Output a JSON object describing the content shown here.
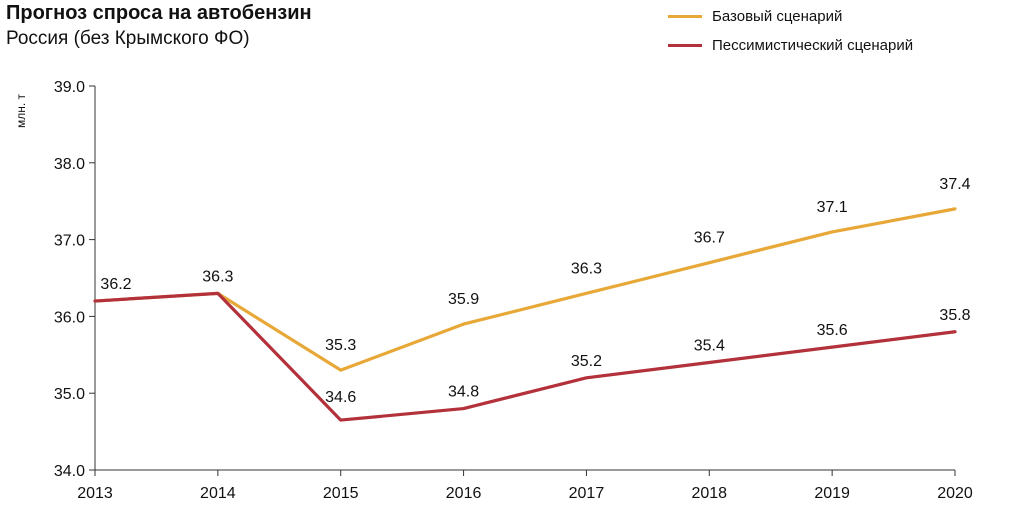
{
  "chart_data": {
    "type": "line",
    "title": "Прогноз спроса на автобензин",
    "subtitle": "Россия (без Крымского ФО)",
    "ylabel": "млн. т",
    "xlabel": "",
    "categories": [
      "2013",
      "2014",
      "2015",
      "2016",
      "2017",
      "2018",
      "2019",
      "2020"
    ],
    "ylim": [
      34.0,
      39.0
    ],
    "yticks": [
      "34.0",
      "35.0",
      "36.0",
      "37.0",
      "38.0",
      "39.0"
    ],
    "grid": false,
    "legend_position": "top-right",
    "series": [
      {
        "name": "Базовый сценарий",
        "color": "#E8A838",
        "values": [
          36.2,
          36.3,
          35.3,
          35.9,
          36.3,
          36.7,
          37.1,
          37.4
        ],
        "labels": [
          "",
          "",
          "35.3",
          "35.9",
          "36.3",
          "36.7",
          "37.1",
          "37.4"
        ]
      },
      {
        "name": "Пессимистический сценарий",
        "color": "#B3313A",
        "values": [
          36.2,
          36.3,
          34.65,
          34.8,
          35.2,
          35.4,
          35.6,
          35.8
        ],
        "labels": [
          "36.2",
          "36.3",
          "34.6",
          "34.8",
          "35.2",
          "35.4",
          "35.6",
          "35.8"
        ]
      }
    ]
  }
}
